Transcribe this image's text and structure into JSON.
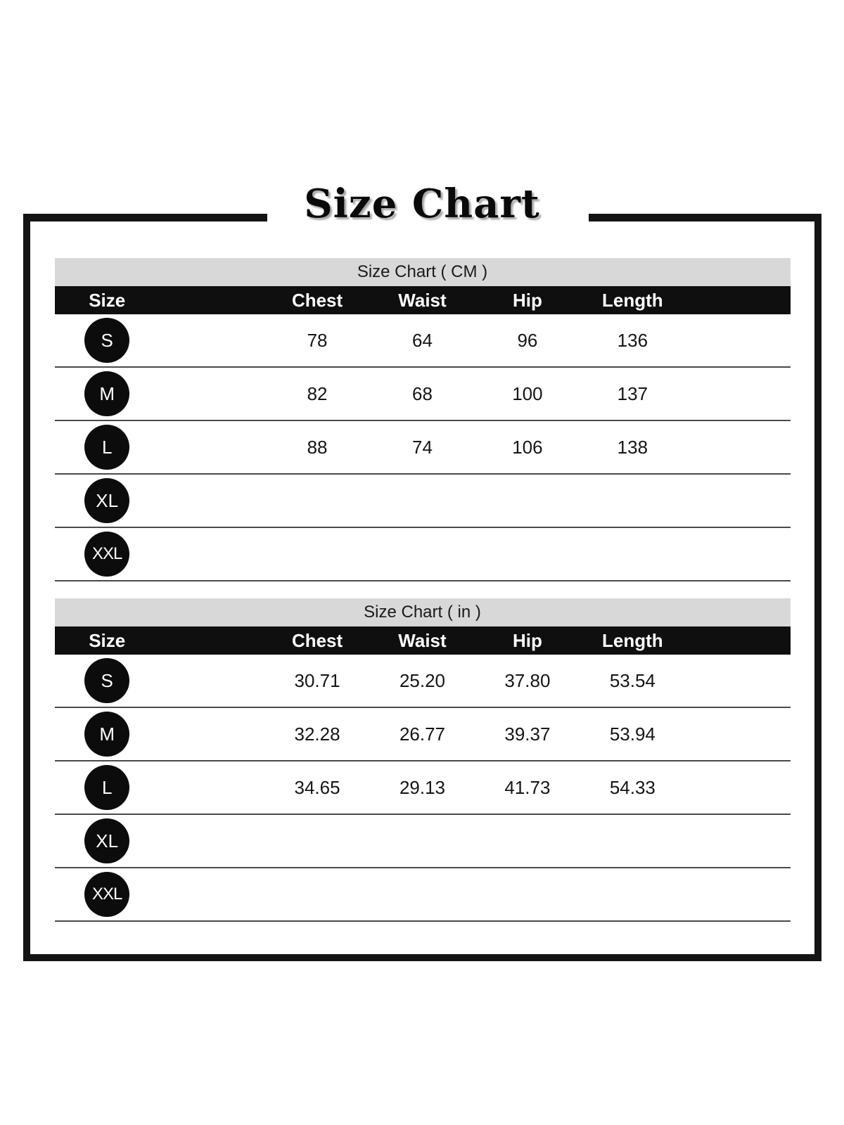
{
  "title": "Size Chart",
  "colors": {
    "frame_and_rules": "#141414",
    "caption_band_bg": "#d8d8d8",
    "header_row_bg": "#0f0f0f",
    "header_row_text": "#ffffff",
    "size_badge_bg": "#0c0c0c",
    "row_separator": "#4a4a4a",
    "body_text": "#151515",
    "page_bg": "#ffffff"
  },
  "chart_data": [
    {
      "type": "table",
      "title": "Size Chart ( CM )",
      "unit": "CM",
      "columns": [
        "Size",
        "Chest",
        "Waist",
        "Hip",
        "Length"
      ],
      "rows": [
        {
          "size": "S",
          "values": [
            "78",
            "64",
            "96",
            "136"
          ]
        },
        {
          "size": "M",
          "values": [
            "82",
            "68",
            "100",
            "137"
          ]
        },
        {
          "size": "L",
          "values": [
            "88",
            "74",
            "106",
            "138"
          ]
        },
        {
          "size": "XL",
          "values": [
            "",
            "",
            "",
            ""
          ]
        },
        {
          "size": "XXL",
          "values": [
            "",
            "",
            "",
            ""
          ]
        }
      ]
    },
    {
      "type": "table",
      "title": "Size Chart ( in )",
      "unit": "in",
      "columns": [
        "Size",
        "Chest",
        "Waist",
        "Hip",
        "Length"
      ],
      "rows": [
        {
          "size": "S",
          "values": [
            "30.71",
            "25.20",
            "37.80",
            "53.54"
          ]
        },
        {
          "size": "M",
          "values": [
            "32.28",
            "26.77",
            "39.37",
            "53.94"
          ]
        },
        {
          "size": "L",
          "values": [
            "34.65",
            "29.13",
            "41.73",
            "54.33"
          ]
        },
        {
          "size": "XL",
          "values": [
            "",
            "",
            "",
            ""
          ]
        },
        {
          "size": "XXL",
          "values": [
            "",
            "",
            "",
            ""
          ]
        }
      ]
    }
  ]
}
